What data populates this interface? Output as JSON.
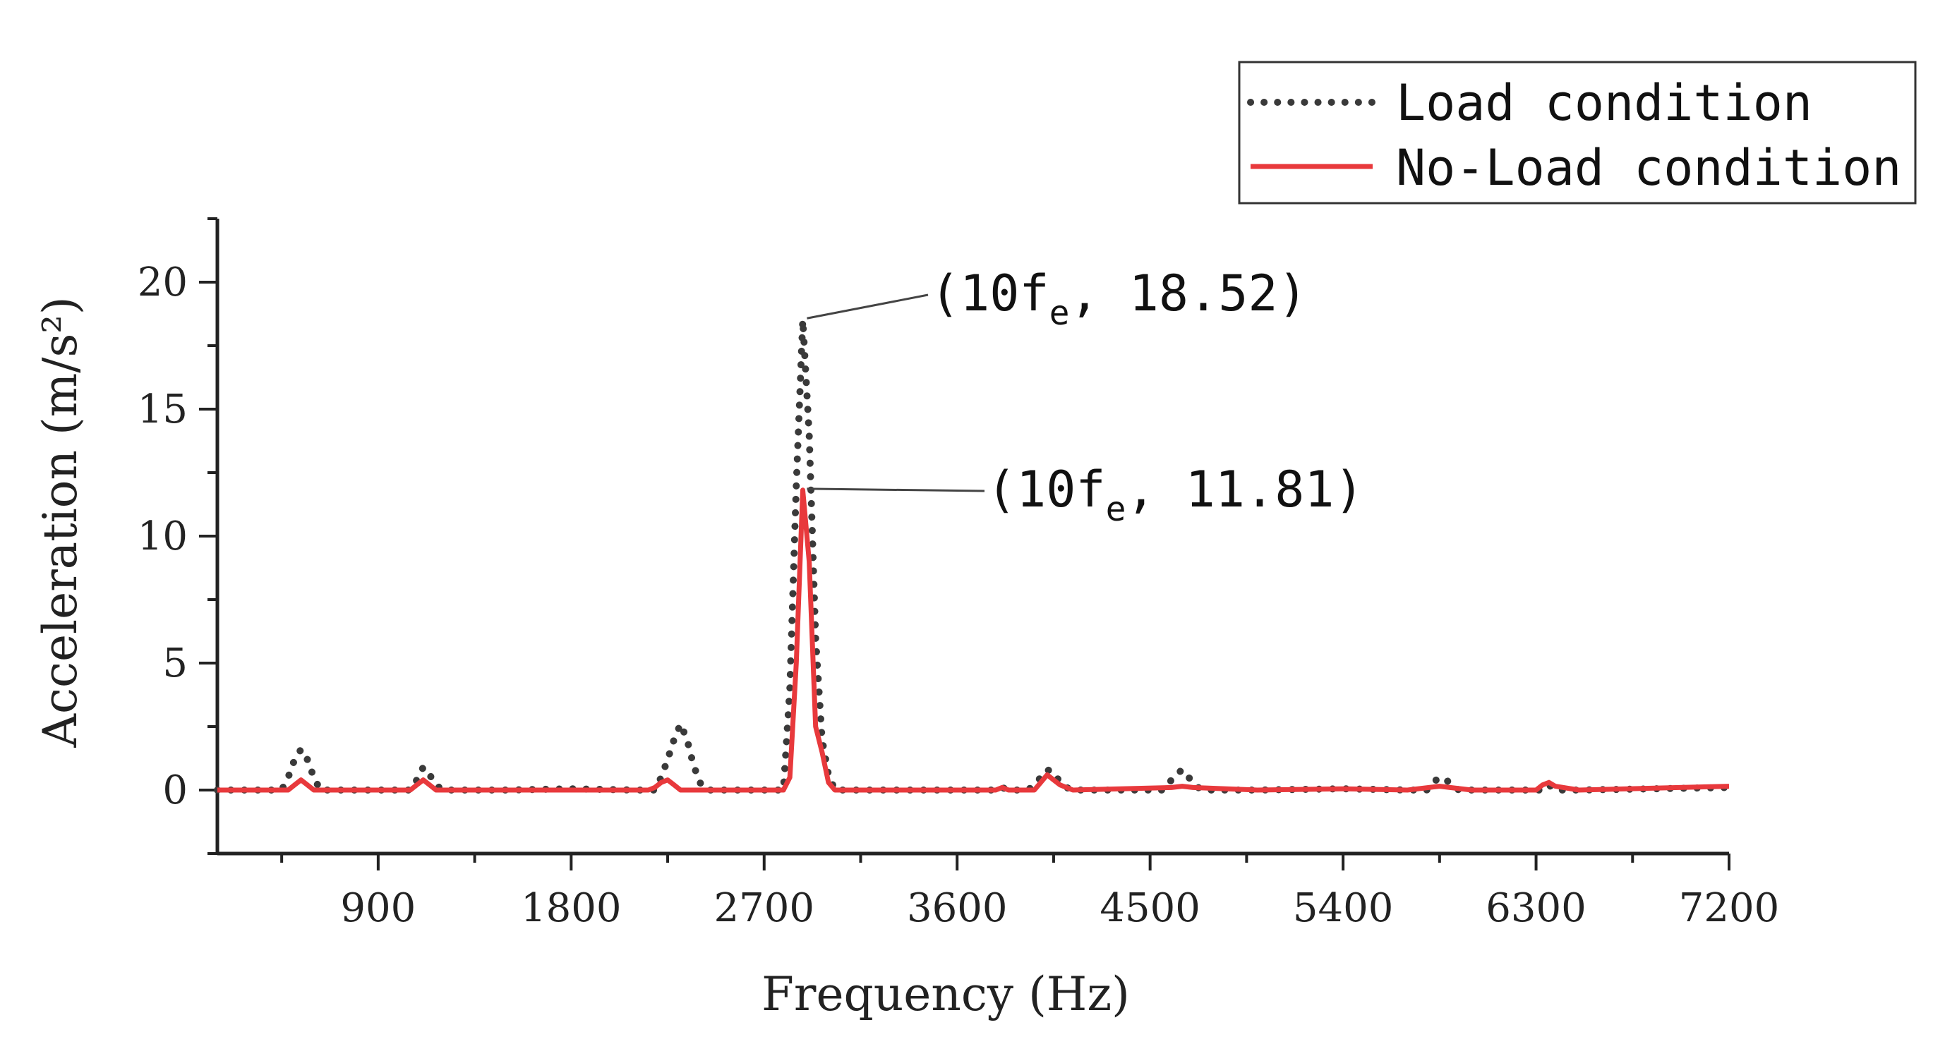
{
  "chart_data": {
    "type": "line",
    "title": "",
    "xlabel": "Frequency (Hz)",
    "ylabel": "Acceleration (m/s²)",
    "xlim": [
      150,
      7200
    ],
    "ylim": [
      -2.5,
      22.5
    ],
    "xticks": [
      900,
      1800,
      2700,
      3600,
      4500,
      5400,
      6300,
      7200
    ],
    "xtick_labels": [
      "900",
      "1800",
      "2700",
      "3600",
      "4500",
      "5400",
      "6300",
      "7200"
    ],
    "yticks": [
      0,
      5,
      10,
      15,
      20
    ],
    "ytick_labels": [
      "0",
      "5",
      "10",
      "15",
      "20"
    ],
    "legend": {
      "position": "top-right",
      "entries": [
        "Load condition",
        "No-Load condition"
      ]
    },
    "series": [
      {
        "name": "Load condition",
        "style": "dotted",
        "color": "#3a3a3a",
        "x": [
          150,
          450,
          480,
          510,
          540,
          570,
          600,
          630,
          900,
          1050,
          1080,
          1110,
          1140,
          1170,
          1200,
          1500,
          1800,
          2100,
          2190,
          2220,
          2250,
          2280,
          2310,
          2340,
          2370,
          2400,
          2430,
          2700,
          2790,
          2820,
          2850,
          2880,
          2910,
          2940,
          2970,
          3000,
          3030,
          3600,
          3780,
          3810,
          3840,
          3930,
          3960,
          3990,
          4020,
          4050,
          4080,
          4110,
          4140,
          4400,
          4560,
          4590,
          4620,
          4650,
          4680,
          4710,
          4740,
          5000,
          5400,
          5700,
          5790,
          5820,
          5850,
          5880,
          5910,
          5940,
          6000,
          6200,
          6330,
          6360,
          6390,
          6500,
          7200
        ],
        "y": [
          0,
          0,
          0.5,
          1.2,
          1.6,
          1.2,
          0.5,
          0,
          0,
          0,
          0.4,
          0.9,
          0.6,
          0.2,
          0,
          0,
          0.05,
          0,
          0,
          0.5,
          1.2,
          2.0,
          2.6,
          2.0,
          1.0,
          0.3,
          0,
          0,
          0,
          4,
          12,
          18.52,
          14,
          6,
          2.0,
          0.6,
          0,
          0,
          0,
          0.1,
          0,
          0,
          0.2,
          0.5,
          0.8,
          0.7,
          0.3,
          0.1,
          0,
          0,
          0,
          0.3,
          0.6,
          0.8,
          0.5,
          0.2,
          0,
          0,
          0.05,
          0,
          0,
          0.3,
          0.5,
          0.4,
          0.2,
          0,
          0,
          0,
          0,
          0.2,
          0,
          0,
          0.1
        ]
      },
      {
        "name": "No-Load condition",
        "style": "solid",
        "color": "#e8393c",
        "x": [
          150,
          480,
          510,
          540,
          570,
          600,
          1050,
          1080,
          1110,
          1140,
          1170,
          2160,
          2190,
          2220,
          2250,
          2280,
          2310,
          2790,
          2820,
          2850,
          2880,
          2910,
          2940,
          2970,
          3000,
          3030,
          3600,
          3780,
          3810,
          3840,
          3960,
          3990,
          4020,
          4050,
          4080,
          4110,
          4140,
          4600,
          4650,
          4700,
          5000,
          5400,
          5700,
          5850,
          6000,
          6300,
          6330,
          6360,
          6390,
          6500,
          7200
        ],
        "y": [
          0,
          0,
          0.2,
          0.4,
          0.2,
          0,
          0,
          0.2,
          0.4,
          0.2,
          0,
          0,
          0.1,
          0.3,
          0.4,
          0.2,
          0,
          0,
          0.5,
          5,
          11.81,
          9,
          2.5,
          1.5,
          0.3,
          0,
          0,
          0,
          0.1,
          0,
          0,
          0.3,
          0.6,
          0.4,
          0.2,
          0.1,
          0,
          0.1,
          0.15,
          0.1,
          0,
          0.05,
          0,
          0.15,
          0,
          0,
          0.2,
          0.3,
          0.15,
          0,
          0.15
        ]
      }
    ],
    "annotations": [
      {
        "series": "Load condition",
        "x": 2880,
        "y": 18.52,
        "label": "(10f",
        "subscript": "e",
        "value_text": ", 18.52)"
      },
      {
        "series": "No-Load condition",
        "x": 2880,
        "y": 11.81,
        "label": "(10f",
        "subscript": "e",
        "value_text": ", 11.81)"
      }
    ]
  }
}
